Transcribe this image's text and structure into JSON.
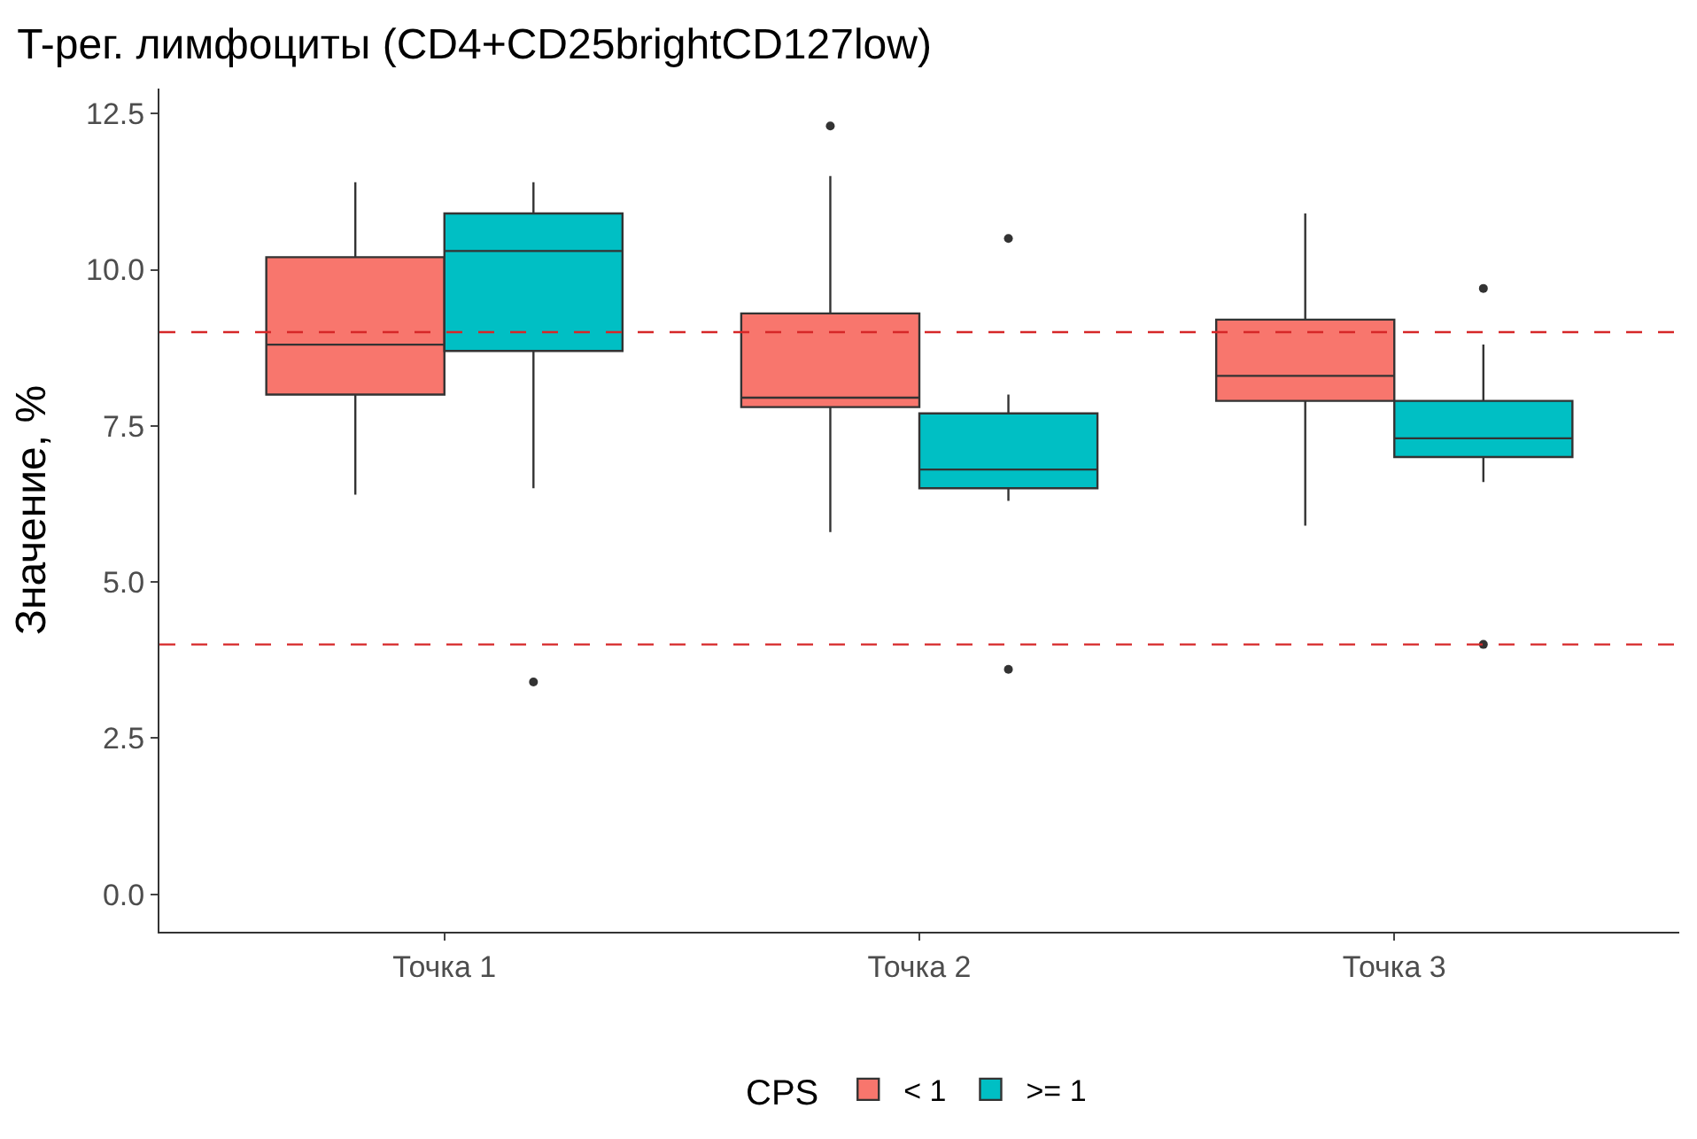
{
  "chart_data": {
    "type": "box",
    "title": "T-рег. лимфоциты (CD4+CD25brightCD127low)",
    "ylabel": "Значение, %",
    "legend_title": "CPS",
    "categories": [
      "Точка 1",
      "Точка 2",
      "Точка 3"
    ],
    "series": [
      {
        "name": "< 1",
        "color": "#f8766d",
        "boxes": [
          {
            "low": 6.4,
            "q1": 8.0,
            "median": 8.8,
            "q3": 10.2,
            "high": 11.4
          },
          {
            "low": 5.8,
            "q1": 7.8,
            "median": 7.95,
            "q3": 9.3,
            "high": 11.5,
            "outliers": [
              12.3
            ]
          },
          {
            "low": 5.9,
            "q1": 7.9,
            "median": 8.3,
            "q3": 9.2,
            "high": 10.9
          }
        ]
      },
      {
        "name": ">= 1",
        "color": "#00bfc4",
        "boxes": [
          {
            "low": 6.5,
            "q1": 8.7,
            "median": 10.3,
            "q3": 10.9,
            "high": 11.4,
            "outliers": [
              3.4
            ]
          },
          {
            "low": 6.3,
            "q1": 6.5,
            "median": 6.8,
            "q3": 7.7,
            "high": 8.0,
            "outliers": [
              10.5,
              3.6
            ]
          },
          {
            "low": 6.6,
            "q1": 7.0,
            "median": 7.3,
            "q3": 7.9,
            "high": 8.8,
            "outliers": [
              9.7,
              4.0
            ]
          }
        ]
      }
    ],
    "ref_lines": [
      {
        "axis": "y",
        "value": 9,
        "color": "#d62728",
        "line_style": "dashed"
      },
      {
        "axis": "y",
        "value": 4,
        "color": "#d62728",
        "line_style": "dashed"
      }
    ],
    "ylim": [
      -0.6,
      12.9
    ],
    "yticks": [
      {
        "value": 0,
        "label": "0.0"
      },
      {
        "value": 2.5,
        "label": "2.5"
      },
      {
        "value": 5,
        "label": "5.0"
      },
      {
        "value": 7.5,
        "label": "7.5"
      },
      {
        "value": 10,
        "label": "10.0"
      },
      {
        "value": 12.5,
        "label": "12.5"
      }
    ],
    "legend": "bottom"
  }
}
